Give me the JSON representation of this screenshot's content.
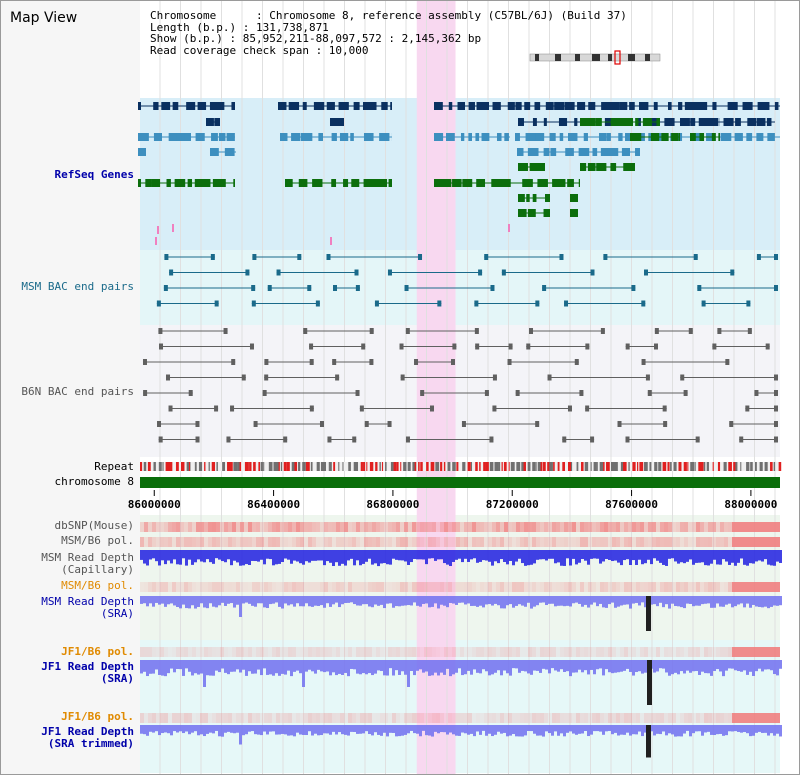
{
  "view_title": "Map View",
  "info": {
    "chromosome": "Chromosome      : Chromosome 8, reference assembly (C57BL/6J) (Build 37)",
    "length": "Length (b.p.) : 131,738,871",
    "show": "Show (b.p.) : 85,952,211-88,097,572 : 2,145,362 bp",
    "coverage": "Read coverage check span : 10,000"
  },
  "tracks": {
    "refseq": "RefSeq Genes",
    "msm_bac": "MSM BAC end pairs",
    "b6n_bac": "B6N BAC end pairs",
    "repeat": "Repeat",
    "chromosome": "chromosome 8",
    "dbsnp": "dbSNP(Mouse)",
    "msm_b6_pol_1": "MSM/B6 pol.",
    "msm_depth_cap_1": "MSM Read Depth",
    "msm_depth_cap_2": "(Capillary)",
    "msm_b6_pol_2": "MSM/B6 pol.",
    "msm_depth_sra_1": "MSM Read Depth",
    "msm_depth_sra_2": "(SRA)",
    "jf1_b6_pol_1": "JF1/B6 pol.",
    "jf1_depth_sra_1": "JF1 Read Depth",
    "jf1_depth_sra_2": "(SRA)",
    "jf1_b6_pol_2": "JF1/B6 pol.",
    "jf1_depth_trim_1": "JF1 Read Depth",
    "jf1_depth_trim_2": "(SRA trimmed)"
  },
  "axis": {
    "ticks": [
      "86000000",
      "86400000",
      "86800000",
      "87200000",
      "87600000",
      "88000000"
    ],
    "values": [
      86000000,
      86400000,
      86800000,
      87200000,
      87600000,
      88000000
    ],
    "range": [
      85952211,
      88097572
    ]
  },
  "highlight": {
    "start": 86880000,
    "end": 87010000,
    "color": "#f8d8f0"
  },
  "colors": {
    "refseq_dark": "#0a3060",
    "refseq_mid": "#3d8fbf",
    "refseq_green": "#0c6e0c",
    "msm_bac": "#1a6a8a",
    "b6n_bac": "#606060",
    "chromosome_bar": "#0a6e0a",
    "depth_capillary": "#2020e0",
    "depth_sra": "#7070f0",
    "pol": "#f08080"
  }
}
